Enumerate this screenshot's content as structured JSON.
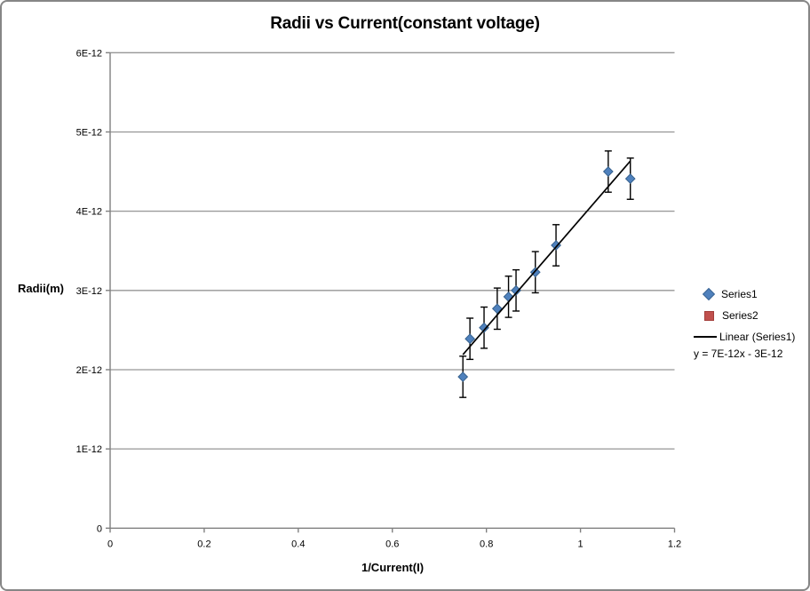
{
  "frame": {
    "background": "#ffffff",
    "border_color": "#868686",
    "axis_color": "#808080",
    "gridline_color": "#969696"
  },
  "chart_data": {
    "type": "scatter",
    "title": "Radii vs Current(constant voltage)",
    "xlabel": "1/Current(I)",
    "ylabel": "Radii(m)",
    "xlim": [
      0,
      1.2
    ],
    "ylim": [
      0,
      6e-12
    ],
    "xtick_values": [
      0,
      0.2,
      0.4,
      0.6,
      0.8,
      1,
      1.2
    ],
    "xtick_labels": [
      "0",
      "0.2",
      "0.4",
      "0.6",
      "0.8",
      "1",
      "1.2"
    ],
    "ytick_values": [
      0,
      1e-12,
      2e-12,
      3e-12,
      4e-12,
      5e-12,
      6e-12
    ],
    "ytick_labels": [
      "0",
      "1E-12",
      "2E-12",
      "3E-12",
      "4E-12",
      "5E-12",
      "6E-12"
    ],
    "grid": "horizontal only",
    "legend_position": "right",
    "series": [
      {
        "name": "Series1",
        "marker": "diamond",
        "color": "#4f81bd",
        "x": [
          0.75,
          0.765,
          0.795,
          0.823,
          0.847,
          0.863,
          0.904,
          0.948,
          1.059,
          1.106
        ],
        "y": [
          1.91e-12,
          2.39e-12,
          2.53e-12,
          2.77e-12,
          2.92e-12,
          3e-12,
          3.23e-12,
          3.57e-12,
          4.5e-12,
          4.41e-12
        ],
        "y_error": 2.6e-13,
        "error_bar_color": "#000000"
      },
      {
        "name": "Series2",
        "marker": "square",
        "color": "#c0504d",
        "x": [],
        "y": []
      }
    ],
    "trendline": {
      "label": "Linear (Series1)",
      "of_series": "Series1",
      "color": "#000000",
      "equation": "y = 7E-12x - 3E-12"
    }
  }
}
